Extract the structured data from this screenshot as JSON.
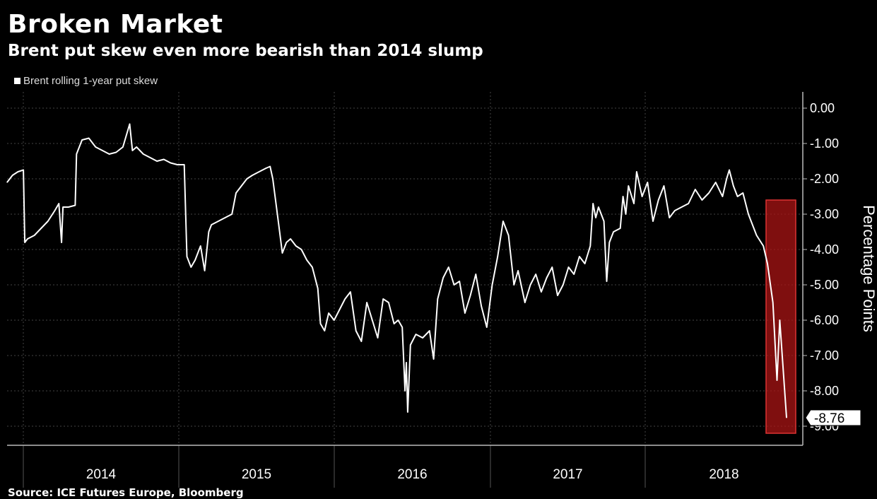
{
  "title": "Broken Market",
  "subtitle": "Brent put skew even more bearish than 2014 slump",
  "legend": {
    "label": "Brent rolling 1-year put skew"
  },
  "source": "Source: ICE Futures Europe, Bloomberg",
  "chart_data": {
    "type": "line",
    "title": "Broken Market",
    "subtitle": "Brent put skew even more bearish than 2014 slump",
    "ylabel": "Percentage Points",
    "xlabel": "",
    "ylim": [
      -9.5,
      0.3
    ],
    "y_ticks": [
      "0.00",
      "-1.00",
      "-2.00",
      "-3.00",
      "-4.00",
      "-5.00",
      "-6.00",
      "-7.00",
      "-8.00",
      "-9.00"
    ],
    "x_ticks": [
      "2014",
      "2015",
      "2016",
      "2017",
      "2018"
    ],
    "last_value_label": "-8.76",
    "highlight": {
      "x_range": [
        2018.77,
        2018.96
      ],
      "y_range": [
        -9.2,
        -2.6
      ],
      "color": "#c0392b"
    },
    "grid": true,
    "legend_position": "top-left",
    "series": [
      {
        "name": "Brent rolling 1-year put skew",
        "color": "#ffffff",
        "points": [
          [
            2013.0,
            -2.1
          ],
          [
            2013.04,
            -1.9
          ],
          [
            2013.08,
            -1.8
          ],
          [
            2013.12,
            -1.75
          ],
          [
            2013.13,
            -3.8
          ],
          [
            2013.15,
            -3.7
          ],
          [
            2013.2,
            -3.6
          ],
          [
            2013.25,
            -3.4
          ],
          [
            2013.3,
            -3.2
          ],
          [
            2013.35,
            -2.9
          ],
          [
            2013.38,
            -2.7
          ],
          [
            2013.4,
            -3.8
          ],
          [
            2013.41,
            -2.8
          ],
          [
            2013.45,
            -2.8
          ],
          [
            2013.5,
            -2.75
          ],
          [
            2013.51,
            -1.3
          ],
          [
            2013.55,
            -0.9
          ],
          [
            2013.6,
            -0.85
          ],
          [
            2013.65,
            -1.1
          ],
          [
            2013.7,
            -1.2
          ],
          [
            2013.75,
            -1.3
          ],
          [
            2013.8,
            -1.25
          ],
          [
            2013.85,
            -1.1
          ],
          [
            2013.9,
            -0.45
          ],
          [
            2013.92,
            -1.2
          ],
          [
            2013.95,
            -1.1
          ],
          [
            2014.0,
            -1.3
          ],
          [
            2014.05,
            -1.4
          ],
          [
            2014.1,
            -1.5
          ],
          [
            2014.15,
            -1.45
          ],
          [
            2014.2,
            -1.55
          ],
          [
            2014.25,
            -1.6
          ],
          [
            2014.3,
            -1.6
          ],
          [
            2014.32,
            -4.2
          ],
          [
            2014.35,
            -4.5
          ],
          [
            2014.38,
            -4.3
          ],
          [
            2014.42,
            -3.9
          ],
          [
            2014.45,
            -4.6
          ],
          [
            2014.48,
            -3.5
          ],
          [
            2014.5,
            -3.3
          ],
          [
            2014.55,
            -3.2
          ],
          [
            2014.6,
            -3.1
          ],
          [
            2014.65,
            -3.0
          ],
          [
            2014.68,
            -2.4
          ],
          [
            2014.72,
            -2.2
          ],
          [
            2014.76,
            -2.0
          ],
          [
            2014.8,
            -1.9
          ],
          [
            2014.85,
            -1.8
          ],
          [
            2014.9,
            -1.7
          ],
          [
            2014.93,
            -1.65
          ],
          [
            2014.95,
            -2.0
          ],
          [
            2014.97,
            -2.6
          ],
          [
            2015.0,
            -3.5
          ],
          [
            2015.02,
            -4.1
          ],
          [
            2015.05,
            -3.8
          ],
          [
            2015.08,
            -3.7
          ],
          [
            2015.12,
            -3.9
          ],
          [
            2015.16,
            -4.0
          ],
          [
            2015.2,
            -4.3
          ],
          [
            2015.24,
            -4.5
          ],
          [
            2015.28,
            -5.1
          ],
          [
            2015.3,
            -6.1
          ],
          [
            2015.33,
            -6.3
          ],
          [
            2015.36,
            -5.8
          ],
          [
            2015.4,
            -6.0
          ],
          [
            2015.44,
            -5.7
          ],
          [
            2015.48,
            -5.4
          ],
          [
            2015.52,
            -5.2
          ],
          [
            2015.56,
            -6.3
          ],
          [
            2015.6,
            -6.6
          ],
          [
            2015.64,
            -5.5
          ],
          [
            2015.68,
            -6.0
          ],
          [
            2015.72,
            -6.5
          ],
          [
            2015.76,
            -5.4
          ],
          [
            2015.8,
            -5.5
          ],
          [
            2015.84,
            -6.1
          ],
          [
            2015.87,
            -6.0
          ],
          [
            2015.9,
            -6.2
          ],
          [
            2015.92,
            -8.0
          ],
          [
            2015.93,
            -7.2
          ],
          [
            2015.94,
            -8.6
          ],
          [
            2015.96,
            -6.7
          ],
          [
            2016.0,
            -6.4
          ],
          [
            2016.05,
            -6.5
          ],
          [
            2016.1,
            -6.3
          ],
          [
            2016.13,
            -7.1
          ],
          [
            2016.16,
            -5.4
          ],
          [
            2016.2,
            -4.8
          ],
          [
            2016.24,
            -4.5
          ],
          [
            2016.28,
            -5.0
          ],
          [
            2016.32,
            -4.9
          ],
          [
            2016.36,
            -5.8
          ],
          [
            2016.4,
            -5.3
          ],
          [
            2016.44,
            -4.7
          ],
          [
            2016.48,
            -5.6
          ],
          [
            2016.52,
            -6.2
          ],
          [
            2016.56,
            -5.0
          ],
          [
            2016.6,
            -4.2
          ],
          [
            2016.64,
            -3.2
          ],
          [
            2016.68,
            -3.6
          ],
          [
            2016.72,
            -5.0
          ],
          [
            2016.75,
            -4.6
          ],
          [
            2016.8,
            -5.5
          ],
          [
            2016.84,
            -5.0
          ],
          [
            2016.88,
            -4.7
          ],
          [
            2016.92,
            -5.2
          ],
          [
            2016.96,
            -4.8
          ],
          [
            2017.0,
            -4.5
          ],
          [
            2017.04,
            -5.3
          ],
          [
            2017.08,
            -5.0
          ],
          [
            2017.12,
            -4.5
          ],
          [
            2017.16,
            -4.7
          ],
          [
            2017.2,
            -4.2
          ],
          [
            2017.24,
            -4.4
          ],
          [
            2017.28,
            -3.9
          ],
          [
            2017.3,
            -2.7
          ],
          [
            2017.32,
            -3.1
          ],
          [
            2017.34,
            -2.8
          ],
          [
            2017.38,
            -3.2
          ],
          [
            2017.4,
            -4.9
          ],
          [
            2017.42,
            -3.8
          ],
          [
            2017.45,
            -3.5
          ],
          [
            2017.5,
            -3.4
          ],
          [
            2017.52,
            -2.5
          ],
          [
            2017.54,
            -3.0
          ],
          [
            2017.56,
            -2.2
          ],
          [
            2017.6,
            -2.7
          ],
          [
            2017.62,
            -1.8
          ],
          [
            2017.66,
            -2.5
          ],
          [
            2017.7,
            -2.1
          ],
          [
            2017.74,
            -3.2
          ],
          [
            2017.78,
            -2.6
          ],
          [
            2017.82,
            -2.2
          ],
          [
            2017.86,
            -3.1
          ],
          [
            2017.9,
            -2.9
          ],
          [
            2017.95,
            -2.8
          ],
          [
            2018.0,
            -2.7
          ],
          [
            2018.05,
            -2.3
          ],
          [
            2018.1,
            -2.6
          ],
          [
            2018.15,
            -2.4
          ],
          [
            2018.2,
            -2.1
          ],
          [
            2018.25,
            -2.5
          ],
          [
            2018.28,
            -2.0
          ],
          [
            2018.3,
            -1.75
          ],
          [
            2018.33,
            -2.2
          ],
          [
            2018.36,
            -2.5
          ],
          [
            2018.4,
            -2.4
          ],
          [
            2018.44,
            -3.0
          ],
          [
            2018.5,
            -3.6
          ],
          [
            2018.55,
            -3.9
          ],
          [
            2018.58,
            -4.4
          ],
          [
            2018.62,
            -5.5
          ],
          [
            2018.65,
            -7.7
          ],
          [
            2018.67,
            -6.0
          ],
          [
            2018.72,
            -8.76
          ]
        ]
      }
    ]
  }
}
